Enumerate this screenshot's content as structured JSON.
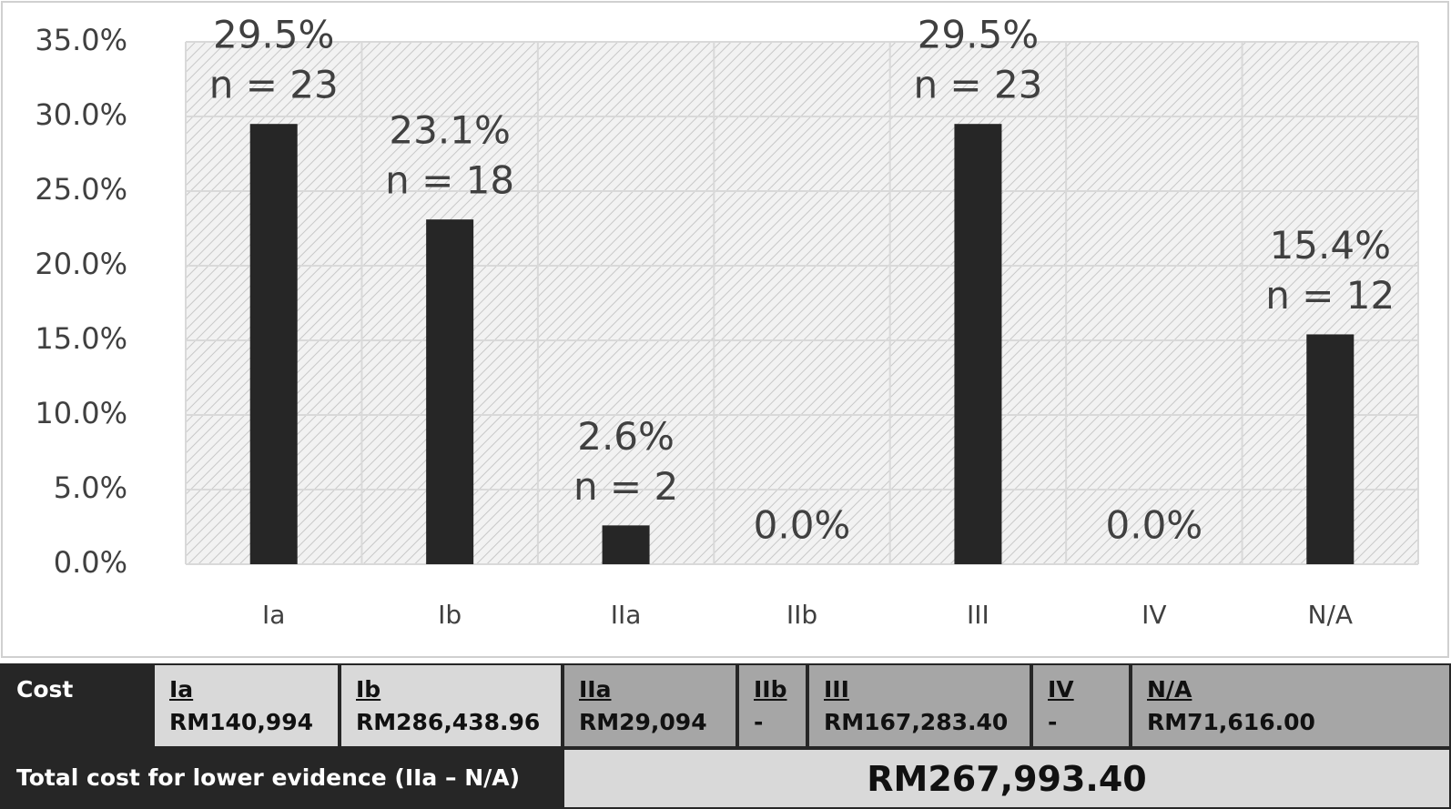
{
  "chart_data": {
    "type": "bar",
    "categories": [
      "Ia",
      "Ib",
      "IIa",
      "IIb",
      "III",
      "IV",
      "N/A"
    ],
    "values": [
      29.5,
      23.1,
      2.6,
      0,
      29.5,
      0,
      15.4
    ],
    "value_labels": [
      "29.5%",
      "23.1%",
      "2.6%",
      "0.0%",
      "29.5%",
      "0.0%",
      "15.4%"
    ],
    "n_labels": [
      "n = 23",
      "n = 18",
      "n = 2",
      null,
      "n = 23",
      null,
      "n = 12"
    ],
    "color": "#262626",
    "ylim": [
      0,
      35
    ],
    "yticks": [
      {
        "value": 0,
        "label": "0.0%"
      },
      {
        "value": 5,
        "label": "5.0%"
      },
      {
        "value": 10,
        "label": "10.0%"
      },
      {
        "value": 15,
        "label": "15.0%"
      },
      {
        "value": 20,
        "label": "20.0%"
      },
      {
        "value": 25,
        "label": "25.0%"
      },
      {
        "value": 30,
        "label": "30.0%"
      },
      {
        "value": 35,
        "label": "35.0%"
      }
    ],
    "grid": true
  },
  "cost_table": {
    "header": "Cost",
    "columns": [
      {
        "name": "Ia",
        "cost": "RM140,994"
      },
      {
        "name": "Ib",
        "cost": "RM286,438.96"
      },
      {
        "name": "IIa",
        "cost": "RM29,094"
      },
      {
        "name": "IIb",
        "cost": "-"
      },
      {
        "name": "III",
        "cost": "RM167,283.40"
      },
      {
        "name": "IV",
        "cost": "-"
      },
      {
        "name": "N/A",
        "cost": "RM71,616.00"
      }
    ],
    "total_label": "Total cost for lower evidence (IIa – N/A)",
    "total": "RM267,993.40"
  }
}
